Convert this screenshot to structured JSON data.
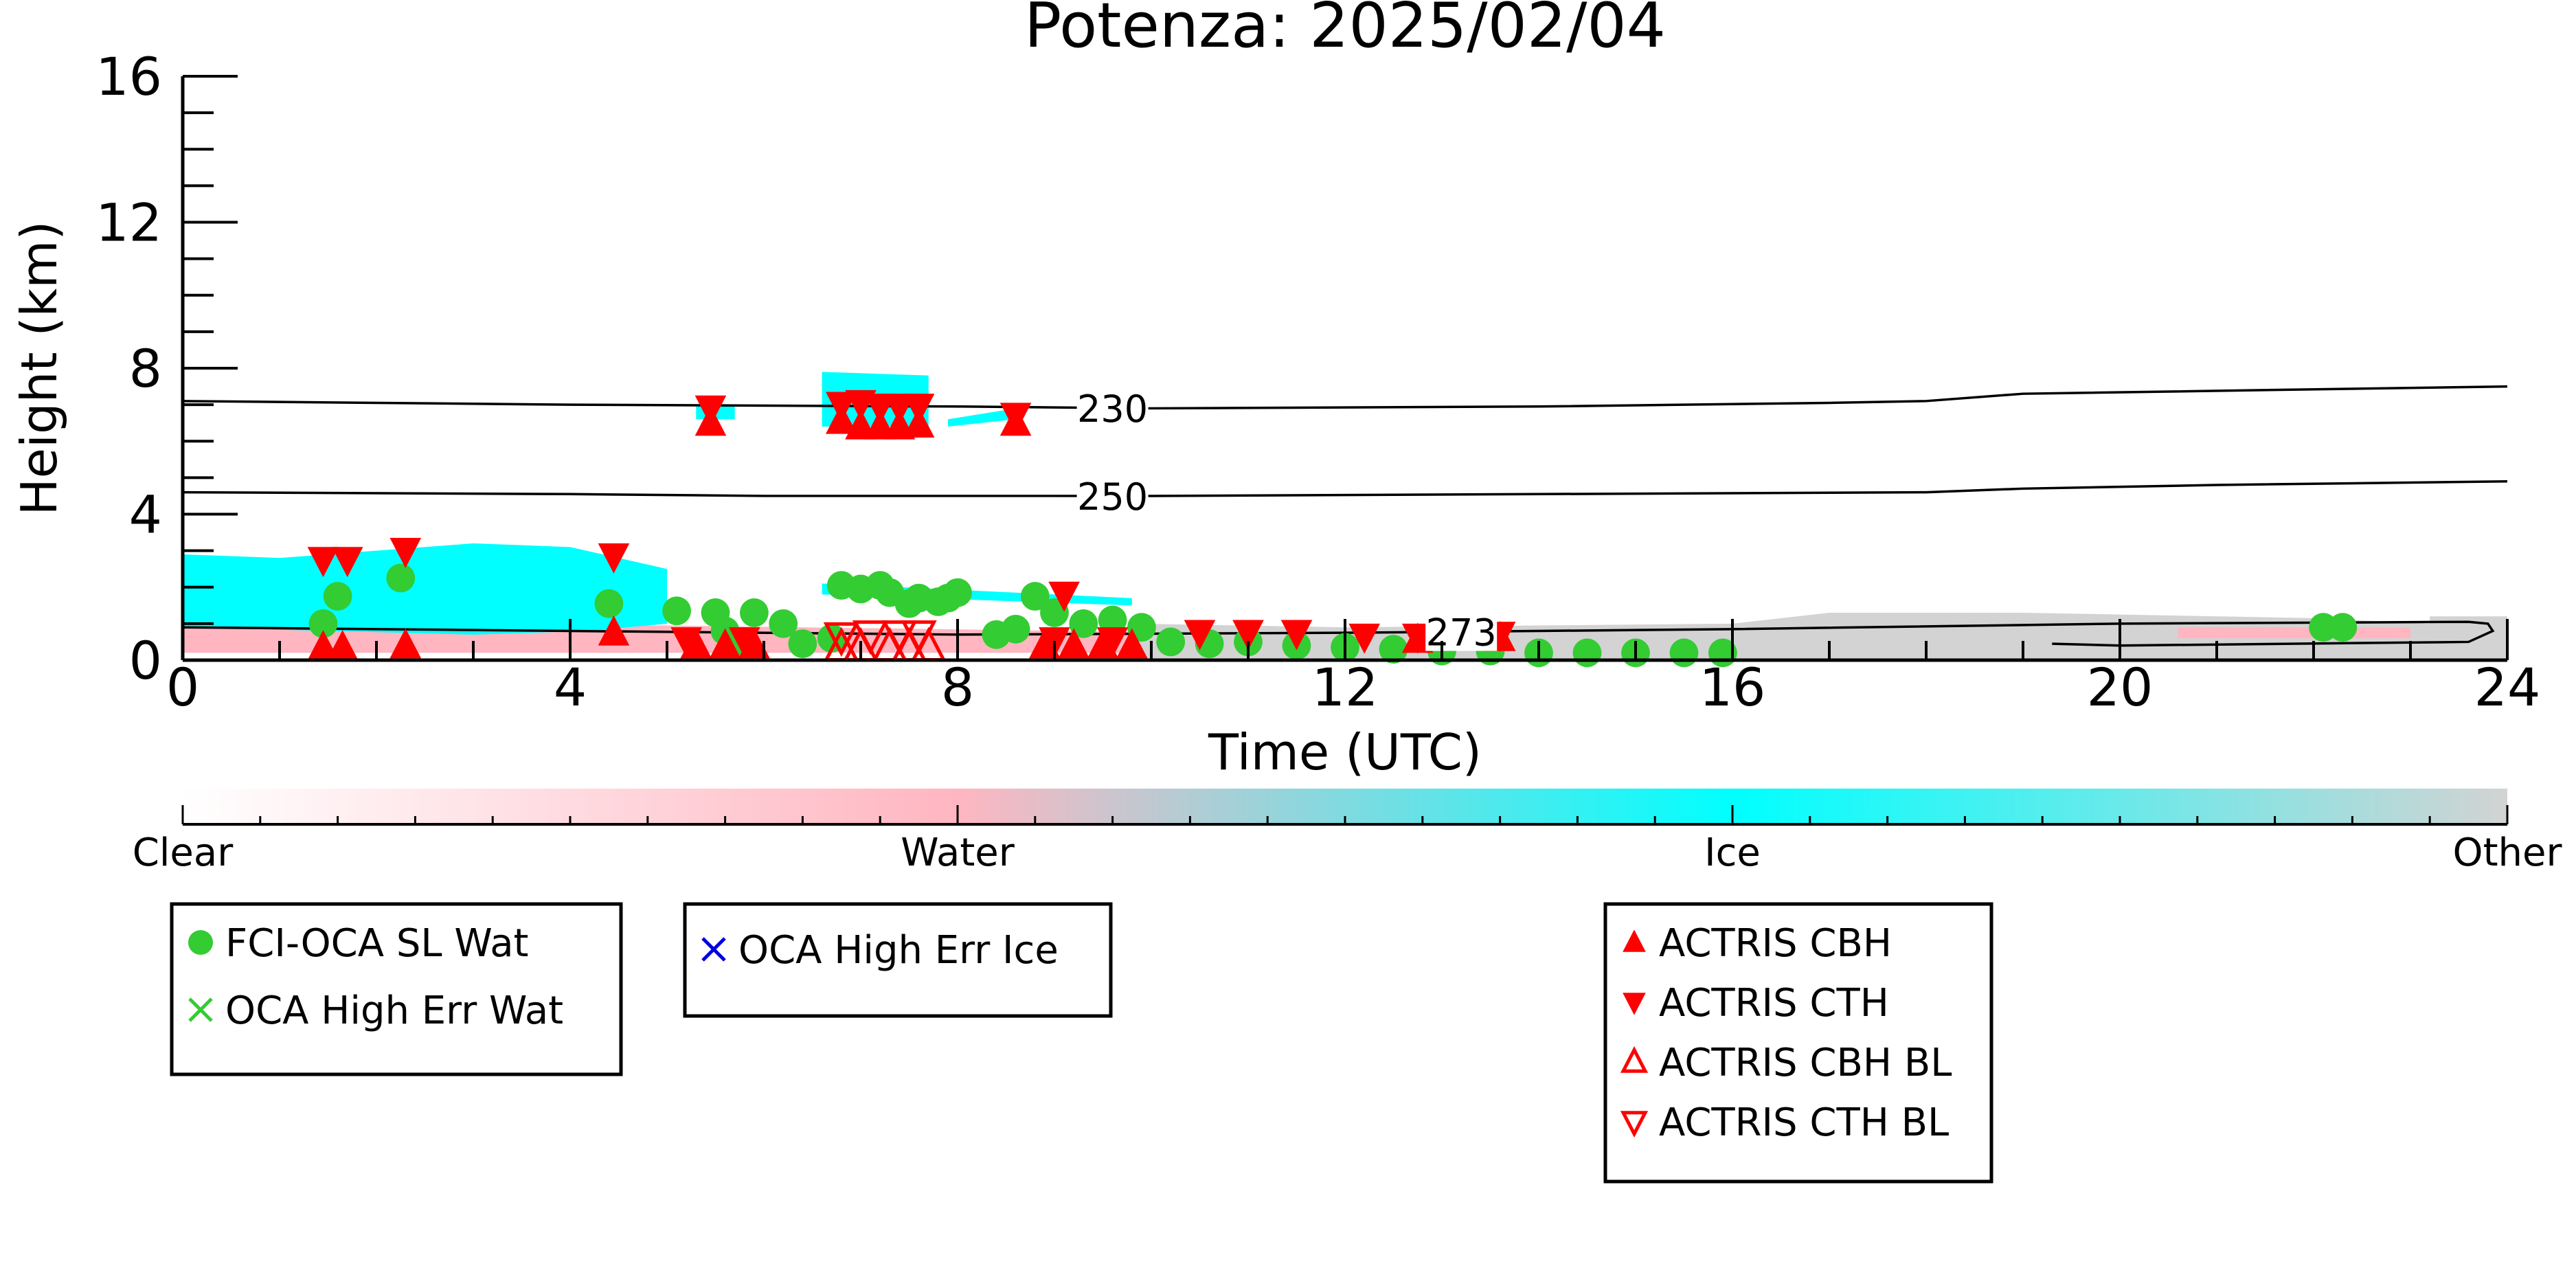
{
  "chart_data": {
    "type": "scatter",
    "title": "Potenza: 2025/02/04",
    "xlabel": "Time (UTC)",
    "ylabel": "Height (km)",
    "xlim": [
      0,
      24
    ],
    "ylim": [
      0,
      16
    ],
    "xticks": [
      0,
      4,
      8,
      12,
      16,
      20,
      24
    ],
    "yticks": [
      0,
      4,
      8,
      12,
      16
    ],
    "grid": false,
    "colorbar": {
      "labels": [
        "Clear",
        "Water",
        "Ice",
        "Other"
      ],
      "colors": [
        "#ffffff",
        "#ffb6c1",
        "#00ffff",
        "#d3d3d3"
      ]
    },
    "contours": [
      {
        "label": "230",
        "label_x": 9.6,
        "points": [
          [
            0,
            7.1
          ],
          [
            4,
            7.0
          ],
          [
            8,
            6.95
          ],
          [
            10,
            6.9
          ],
          [
            14,
            6.95
          ],
          [
            17,
            7.05
          ],
          [
            18,
            7.1
          ],
          [
            19,
            7.3
          ],
          [
            24,
            7.5
          ]
        ]
      },
      {
        "label": "250",
        "label_x": 9.6,
        "points": [
          [
            0,
            4.6
          ],
          [
            4,
            4.55
          ],
          [
            6,
            4.5
          ],
          [
            10,
            4.5
          ],
          [
            14,
            4.55
          ],
          [
            18,
            4.6
          ],
          [
            19,
            4.7
          ],
          [
            21,
            4.8
          ],
          [
            24,
            4.9
          ]
        ]
      },
      {
        "label": "273",
        "label_x": 13.2,
        "points": [
          [
            0,
            0.9
          ],
          [
            4,
            0.8
          ],
          [
            8,
            0.7
          ],
          [
            12,
            0.75
          ],
          [
            14,
            0.8
          ],
          [
            16,
            0.85
          ],
          [
            20,
            1.0
          ],
          [
            23.6,
            1.05
          ],
          [
            23.8,
            1.0
          ],
          [
            23.85,
            0.8
          ],
          [
            23.6,
            0.5
          ],
          [
            20,
            0.4
          ],
          [
            19.3,
            0.45
          ]
        ]
      }
    ],
    "cloud_regions": [
      {
        "class": "Water",
        "polygon": [
          [
            0,
            0.2
          ],
          [
            24,
            0.2
          ],
          [
            24,
            0.6
          ],
          [
            12,
            0.7
          ],
          [
            5,
            0.95
          ],
          [
            0,
            1.0
          ]
        ]
      },
      {
        "class": "Ice",
        "polygon": [
          [
            0,
            0.9
          ],
          [
            1.5,
            0.8
          ],
          [
            3,
            0.7
          ],
          [
            4.2,
            0.8
          ],
          [
            5,
            1.0
          ],
          [
            5,
            2.5
          ],
          [
            4,
            3.1
          ],
          [
            3,
            3.2
          ],
          [
            2,
            3.0
          ],
          [
            1,
            2.8
          ],
          [
            0,
            2.9
          ]
        ]
      },
      {
        "class": "Ice",
        "polygon": [
          [
            6.6,
            1.8
          ],
          [
            9.8,
            1.5
          ],
          [
            9.8,
            1.7
          ],
          [
            6.6,
            2.1
          ]
        ]
      },
      {
        "class": "Ice",
        "polygon": [
          [
            5.3,
            6.6
          ],
          [
            5.7,
            6.6
          ],
          [
            5.7,
            7.0
          ],
          [
            5.3,
            7.0
          ]
        ]
      },
      {
        "class": "Ice",
        "polygon": [
          [
            6.6,
            6.4
          ],
          [
            7.7,
            6.4
          ],
          [
            7.7,
            7.8
          ],
          [
            6.6,
            7.9
          ]
        ]
      },
      {
        "class": "Ice",
        "polygon": [
          [
            7.9,
            6.4
          ],
          [
            8.6,
            6.6
          ],
          [
            8.6,
            6.9
          ],
          [
            7.9,
            6.6
          ]
        ]
      },
      {
        "class": "Other",
        "polygon": [
          [
            9.8,
            0.0
          ],
          [
            24,
            0.0
          ],
          [
            24,
            1.2
          ],
          [
            23.2,
            1.2
          ],
          [
            23.2,
            1.0
          ],
          [
            22,
            1.15
          ],
          [
            20,
            1.25
          ],
          [
            19,
            1.3
          ],
          [
            17,
            1.3
          ],
          [
            16,
            1.0
          ],
          [
            14,
            0.95
          ],
          [
            12,
            0.9
          ],
          [
            9.8,
            1.0
          ]
        ]
      },
      {
        "class": "Water",
        "polygon": [
          [
            20.6,
            0.6
          ],
          [
            23,
            0.6
          ],
          [
            23,
            0.9
          ],
          [
            20.6,
            0.9
          ]
        ]
      }
    ],
    "series": [
      {
        "name": "FCI-OCA SL Wat",
        "marker": "circle",
        "color": "#33cc33",
        "points": [
          [
            1.45,
            1.0
          ],
          [
            1.6,
            1.75
          ],
          [
            2.25,
            2.25
          ],
          [
            4.4,
            1.55
          ],
          [
            5.1,
            1.35
          ],
          [
            5.5,
            1.3
          ],
          [
            5.6,
            0.8
          ],
          [
            5.8,
            0.45
          ],
          [
            5.9,
            1.3
          ],
          [
            6.2,
            1.0
          ],
          [
            6.4,
            0.45
          ],
          [
            6.7,
            0.6
          ],
          [
            6.8,
            2.05
          ],
          [
            7.0,
            1.95
          ],
          [
            7.2,
            2.05
          ],
          [
            7.3,
            1.85
          ],
          [
            7.5,
            1.55
          ],
          [
            7.6,
            1.7
          ],
          [
            7.8,
            1.6
          ],
          [
            7.9,
            1.7
          ],
          [
            8.0,
            1.85
          ],
          [
            8.4,
            0.7
          ],
          [
            8.6,
            0.85
          ],
          [
            8.8,
            1.75
          ],
          [
            9.0,
            1.3
          ],
          [
            9.3,
            1.0
          ],
          [
            9.6,
            1.1
          ],
          [
            9.9,
            0.9
          ],
          [
            10.2,
            0.5
          ],
          [
            10.6,
            0.45
          ],
          [
            11.0,
            0.5
          ],
          [
            11.5,
            0.4
          ],
          [
            12.0,
            0.35
          ],
          [
            12.5,
            0.3
          ],
          [
            13.0,
            0.25
          ],
          [
            13.5,
            0.25
          ],
          [
            14.0,
            0.2
          ],
          [
            14.5,
            0.2
          ],
          [
            15.0,
            0.2
          ],
          [
            15.5,
            0.2
          ],
          [
            15.9,
            0.2
          ],
          [
            22.1,
            0.9
          ],
          [
            22.3,
            0.9
          ]
        ]
      },
      {
        "name": "OCA High Err Wat",
        "marker": "x",
        "color": "#33cc33",
        "points": []
      },
      {
        "name": "OCA High Err Ice",
        "marker": "x",
        "color": "#0000dd",
        "points": []
      },
      {
        "name": "ACTRIS CBH",
        "marker": "triangle-up",
        "color": "#ff0000",
        "points": [
          [
            1.45,
            0.35
          ],
          [
            1.65,
            0.35
          ],
          [
            2.3,
            0.4
          ],
          [
            4.45,
            0.75
          ],
          [
            5.45,
            6.5
          ],
          [
            6.8,
            6.55
          ],
          [
            7.0,
            6.4
          ],
          [
            7.2,
            6.4
          ],
          [
            7.4,
            6.4
          ],
          [
            7.6,
            6.45
          ],
          [
            8.6,
            6.5
          ],
          [
            5.3,
            0.4
          ],
          [
            5.6,
            0.4
          ],
          [
            5.9,
            0.4
          ],
          [
            8.9,
            0.4
          ],
          [
            9.2,
            0.4
          ],
          [
            9.5,
            0.4
          ],
          [
            9.8,
            0.4
          ],
          [
            12.75,
            0.55
          ],
          [
            13.6,
            0.6
          ]
        ]
      },
      {
        "name": "ACTRIS CTH",
        "marker": "triangle-down",
        "color": "#ff0000",
        "points": [
          [
            1.45,
            2.75
          ],
          [
            1.7,
            2.75
          ],
          [
            2.3,
            3.0
          ],
          [
            4.45,
            2.85
          ],
          [
            5.45,
            6.9
          ],
          [
            6.8,
            7.0
          ],
          [
            7.0,
            7.05
          ],
          [
            7.2,
            6.95
          ],
          [
            7.4,
            6.95
          ],
          [
            7.6,
            6.95
          ],
          [
            8.6,
            6.7
          ],
          [
            9.1,
            1.8
          ],
          [
            5.2,
            0.55
          ],
          [
            5.8,
            0.55
          ],
          [
            9.0,
            0.55
          ],
          [
            9.6,
            0.55
          ],
          [
            10.5,
            0.75
          ],
          [
            11.0,
            0.75
          ],
          [
            11.5,
            0.75
          ],
          [
            12.2,
            0.65
          ],
          [
            12.75,
            0.65
          ],
          [
            13.6,
            0.7
          ]
        ]
      },
      {
        "name": "ACTRIS CBH BL",
        "marker": "triangle-up-open",
        "color": "#ff0000",
        "points": [
          [
            6.8,
            0.35
          ],
          [
            7.0,
            0.35
          ],
          [
            7.3,
            0.35
          ],
          [
            7.5,
            0.35
          ],
          [
            7.7,
            0.35
          ]
        ]
      },
      {
        "name": "ACTRIS CTH BL",
        "marker": "triangle-down-open",
        "color": "#ff0000",
        "points": [
          [
            6.8,
            0.65
          ],
          [
            7.1,
            0.7
          ],
          [
            7.4,
            0.7
          ],
          [
            7.6,
            0.7
          ]
        ]
      }
    ],
    "legends": [
      [
        "FCI-OCA SL Wat",
        "OCA High Err Wat"
      ],
      [
        "OCA High Err Ice"
      ],
      [
        "ACTRIS CBH",
        "ACTRIS CTH",
        "ACTRIS CBH BL",
        "ACTRIS CTH BL"
      ]
    ]
  }
}
